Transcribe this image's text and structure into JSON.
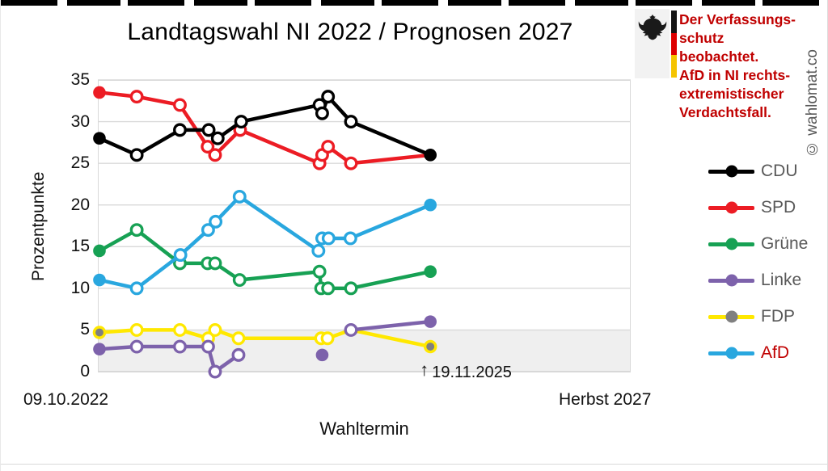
{
  "page": {
    "watermark": "© wahlomat.co"
  },
  "warning": {
    "lines": [
      "Der Verfassungs-",
      "schutz beobachtet.",
      "AfD in NI rechts-",
      "extremistischer",
      "Verdachtsfall."
    ],
    "text_color": "#c00000",
    "flag_colors": [
      "#141414",
      "#dd0000",
      "#f5c400"
    ]
  },
  "chart_data": {
    "type": "line",
    "title": "Landtagswahl NI 2022 / Prognosen 2027",
    "ylabel": "Prozentpunkte",
    "xlabel": "Wahltermin",
    "ylim": [
      0,
      35
    ],
    "yticks": [
      0,
      5,
      10,
      15,
      20,
      25,
      30,
      35
    ],
    "grid": "horizontal",
    "threshold_band": {
      "from": 0,
      "to": 5,
      "color": "#efefef"
    },
    "x_axis": {
      "start_label": "09.10.2022",
      "end_label": "Herbst 2027",
      "note": "x positions given as fraction of axis from 09.10.2022 (0) to Herbst 2027 (1)"
    },
    "annotation": {
      "arrow": "↑",
      "text": "19.11.2025",
      "x_frac": 0.624
    },
    "legend_position": "right",
    "series": [
      {
        "name": "FDP",
        "color": "#ffe800",
        "dot_color": "#808080",
        "label_color": "#595959",
        "points": [
          {
            "x": 0.003,
            "v": 4.7,
            "m": "g"
          },
          {
            "x": 0.073,
            "v": 5,
            "m": "o"
          },
          {
            "x": 0.154,
            "v": 5,
            "m": "o"
          },
          {
            "x": 0.207,
            "v": 4,
            "m": "o"
          },
          {
            "x": 0.22,
            "v": 5,
            "m": "o"
          },
          {
            "x": 0.264,
            "v": 4,
            "m": "o"
          },
          {
            "x": 0.419,
            "v": 4,
            "m": "o"
          },
          {
            "x": 0.431,
            "v": 4,
            "m": "o"
          },
          {
            "x": 0.475,
            "v": 5,
            "m": "n"
          },
          {
            "x": 0.624,
            "v": 3,
            "m": "g"
          }
        ]
      },
      {
        "name": "Linke",
        "color": "#7d62ab",
        "dot_color": "#7d62ab",
        "label_color": "#595959",
        "points": [
          {
            "x": 0.003,
            "v": 2.7,
            "m": "f"
          },
          {
            "x": 0.073,
            "v": 3,
            "m": "o"
          },
          {
            "x": 0.154,
            "v": 3,
            "m": "o"
          },
          {
            "x": 0.207,
            "v": 3,
            "m": "o"
          },
          {
            "x": 0.22,
            "v": 0,
            "m": "o"
          },
          {
            "x": 0.264,
            "v": 2,
            "m": "o"
          },
          {
            "x": 0.421,
            "v": 2,
            "m": "f",
            "gap": true
          },
          {
            "x": 0.475,
            "v": 5,
            "m": "o",
            "gap": true
          },
          {
            "x": 0.624,
            "v": 6,
            "m": "f"
          }
        ]
      },
      {
        "name": "Grüne",
        "color": "#17a154",
        "dot_color": "#17a154",
        "label_color": "#595959",
        "points": [
          {
            "x": 0.003,
            "v": 14.5,
            "m": "f"
          },
          {
            "x": 0.073,
            "v": 17,
            "m": "o"
          },
          {
            "x": 0.154,
            "v": 13,
            "m": "o"
          },
          {
            "x": 0.206,
            "v": 13,
            "m": "o"
          },
          {
            "x": 0.22,
            "v": 13,
            "m": "o"
          },
          {
            "x": 0.266,
            "v": 11,
            "m": "o"
          },
          {
            "x": 0.416,
            "v": 12,
            "m": "o"
          },
          {
            "x": 0.419,
            "v": 10,
            "m": "o"
          },
          {
            "x": 0.432,
            "v": 10,
            "m": "o"
          },
          {
            "x": 0.475,
            "v": 10,
            "m": "o"
          },
          {
            "x": 0.624,
            "v": 12,
            "m": "f"
          }
        ]
      },
      {
        "name": "AfD",
        "color": "#29a7df",
        "dot_color": "#29a7df",
        "label_color": "#c00000",
        "points": [
          {
            "x": 0.003,
            "v": 11,
            "m": "f"
          },
          {
            "x": 0.073,
            "v": 10,
            "m": "o"
          },
          {
            "x": 0.155,
            "v": 14,
            "m": "o"
          },
          {
            "x": 0.207,
            "v": 17,
            "m": "o"
          },
          {
            "x": 0.221,
            "v": 18,
            "m": "o"
          },
          {
            "x": 0.266,
            "v": 21,
            "m": "o"
          },
          {
            "x": 0.414,
            "v": 14.5,
            "m": "o"
          },
          {
            "x": 0.421,
            "v": 16,
            "m": "o"
          },
          {
            "x": 0.433,
            "v": 16,
            "m": "o"
          },
          {
            "x": 0.474,
            "v": 16,
            "m": "o"
          },
          {
            "x": 0.624,
            "v": 20,
            "m": "f"
          }
        ]
      },
      {
        "name": "SPD",
        "color": "#ec1c24",
        "dot_color": "#ec1c24",
        "label_color": "#595959",
        "points": [
          {
            "x": 0.003,
            "v": 33.5,
            "m": "f"
          },
          {
            "x": 0.073,
            "v": 33,
            "m": "o"
          },
          {
            "x": 0.154,
            "v": 32,
            "m": "o"
          },
          {
            "x": 0.206,
            "v": 27,
            "m": "o"
          },
          {
            "x": 0.22,
            "v": 26,
            "m": "o"
          },
          {
            "x": 0.267,
            "v": 29,
            "m": "o"
          },
          {
            "x": 0.416,
            "v": 25,
            "m": "o"
          },
          {
            "x": 0.421,
            "v": 26,
            "m": "o"
          },
          {
            "x": 0.432,
            "v": 27,
            "m": "o"
          },
          {
            "x": 0.475,
            "v": 25,
            "m": "o"
          },
          {
            "x": 0.624,
            "v": 26,
            "m": "n"
          }
        ]
      },
      {
        "name": "CDU",
        "color": "#000000",
        "dot_color": "#000000",
        "label_color": "#595959",
        "points": [
          {
            "x": 0.003,
            "v": 28,
            "m": "f"
          },
          {
            "x": 0.073,
            "v": 26,
            "m": "o"
          },
          {
            "x": 0.154,
            "v": 29,
            "m": "o"
          },
          {
            "x": 0.208,
            "v": 29,
            "m": "o"
          },
          {
            "x": 0.225,
            "v": 28,
            "m": "o"
          },
          {
            "x": 0.269,
            "v": 30,
            "m": "o"
          },
          {
            "x": 0.416,
            "v": 32,
            "m": "o"
          },
          {
            "x": 0.421,
            "v": 31,
            "m": "o"
          },
          {
            "x": 0.432,
            "v": 33,
            "m": "o"
          },
          {
            "x": 0.475,
            "v": 30,
            "m": "o"
          },
          {
            "x": 0.624,
            "v": 26,
            "m": "f"
          }
        ]
      }
    ],
    "legend_order": [
      "CDU",
      "SPD",
      "Grüne",
      "Linke",
      "FDP",
      "AfD"
    ]
  }
}
